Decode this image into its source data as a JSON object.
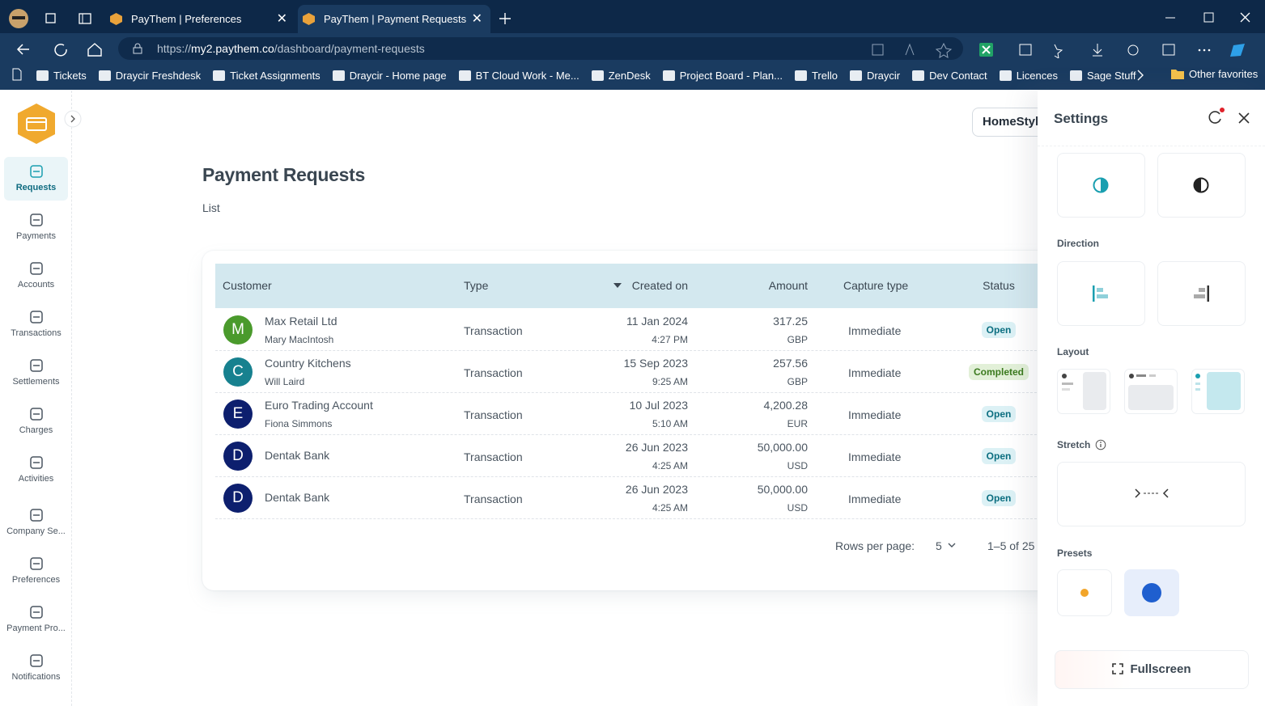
{
  "browser": {
    "tabs": [
      {
        "title": "PayThem | Preferences"
      },
      {
        "title": "PayThem | Payment Requests"
      }
    ],
    "url": {
      "scheme": "https://",
      "host": "my2.paythem.co",
      "path": "/dashboard/payment-requests"
    },
    "bookmarks": [
      "Tickets",
      "Draycir Freshdesk",
      "Ticket Assignments",
      "Draycir - Home page",
      "BT Cloud Work - Me...",
      "ZenDesk",
      "Project Board - Plan...",
      "Trello",
      "Draycir",
      "Dev Contact",
      "Licences",
      "Sage Stuff"
    ],
    "other_favorites": "Other favorites"
  },
  "sidebar": {
    "nav": [
      "Requests",
      "Payments",
      "Accounts",
      "Transactions",
      "Settlements",
      "Charges",
      "Activities",
      "Company Se...",
      "Preferences",
      "Payment Pro...",
      "Notifications"
    ]
  },
  "header": {
    "org_button": "HomeStyl"
  },
  "page": {
    "title": "Payment Requests",
    "breadcrumb": "List"
  },
  "table": {
    "columns": [
      "Customer",
      "Type",
      "Created on",
      "Amount",
      "Capture type",
      "Status"
    ],
    "rows": [
      {
        "initial": "M",
        "avatar_color": "#4a9a2c",
        "customer": "Max Retail Ltd",
        "contact": "Mary MacIntosh",
        "type": "Transaction",
        "date": "11 Jan 2024",
        "time": "4:27 PM",
        "amount": "317.25",
        "currency": "GBP",
        "capture": "Immediate",
        "status": "Open",
        "status_color": "#0b6e80",
        "status_bg": "#dcf1f5"
      },
      {
        "initial": "C",
        "avatar_color": "#17818f",
        "customer": "Country Kitchens",
        "contact": "Will Laird",
        "type": "Transaction",
        "date": "15 Sep 2023",
        "time": "9:25 AM",
        "amount": "257.56",
        "currency": "GBP",
        "capture": "Immediate",
        "status": "Completed",
        "status_color": "#3b7a1e",
        "status_bg": "#e2f0d8"
      },
      {
        "initial": "E",
        "avatar_color": "#0d1f6e",
        "customer": "Euro Trading Account",
        "contact": "Fiona Simmons",
        "type": "Transaction",
        "date": "10 Jul 2023",
        "time": "5:10 AM",
        "amount": "4,200.28",
        "currency": "EUR",
        "capture": "Immediate",
        "status": "Open",
        "status_color": "#0b6e80",
        "status_bg": "#dcf1f5"
      },
      {
        "initial": "D",
        "avatar_color": "#0d1f6e",
        "customer": "Dentak Bank",
        "type": "Transaction",
        "date": "26 Jun 2023",
        "time": "4:25 AM",
        "amount": "50,000.00",
        "currency": "USD",
        "capture": "Immediate",
        "status": "Open",
        "status_color": "#0b6e80",
        "status_bg": "#dcf1f5"
      },
      {
        "initial": "D",
        "avatar_color": "#0d1f6e",
        "customer": "Dentak Bank",
        "type": "Transaction",
        "date": "26 Jun 2023",
        "time": "4:25 AM",
        "amount": "50,000.00",
        "currency": "USD",
        "capture": "Immediate",
        "status": "Open",
        "status_color": "#0b6e80",
        "status_bg": "#dcf1f5"
      }
    ],
    "pagination": {
      "rows_per_page_label": "Rows per page:",
      "rows_per_page": "5",
      "range": "1–5 of 25"
    }
  },
  "settings": {
    "title": "Settings",
    "direction": "Direction",
    "layout": "Layout",
    "stretch": "Stretch",
    "presets": "Presets",
    "fullscreen": "Fullscreen"
  }
}
